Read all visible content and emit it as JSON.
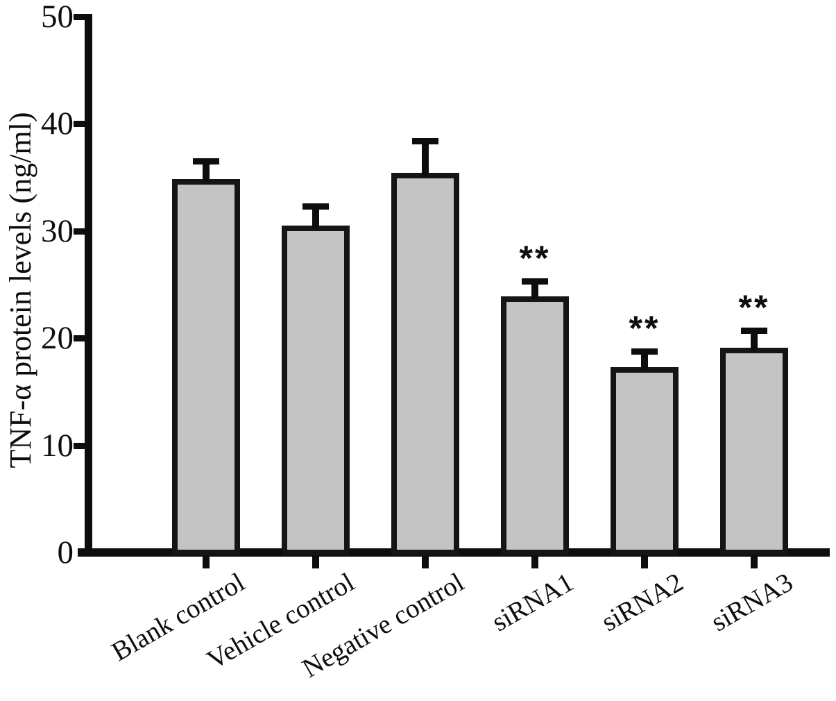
{
  "figure": {
    "background": "#ffffff",
    "axis_color": "#0d0d0d",
    "text_color": "#0d0d0d"
  },
  "chart_data": {
    "type": "bar",
    "title": "",
    "xlabel": "",
    "ylabel": "TNF-α protein levels (ng/ml)",
    "ylim": [
      0,
      50
    ],
    "yticks": [
      0,
      10,
      20,
      30,
      40,
      50
    ],
    "grid": false,
    "legend": "none",
    "categories": [
      "Blank control",
      "Vehicle control",
      "Negative control",
      "siRNA1",
      "siRNA2",
      "siRNA3"
    ],
    "series": [
      {
        "name": "TNF-α protein levels",
        "values": [
          34.8,
          30.5,
          35.4,
          23.9,
          17.3,
          19.1
        ],
        "errors_plus": [
          1.7,
          1.8,
          3.0,
          1.4,
          1.5,
          1.6
        ]
      }
    ],
    "significance": [
      "",
      "",
      "",
      "**",
      "**",
      "**"
    ],
    "bar_fill": "#c4c4c4",
    "bar_border": "#151515",
    "error_bar_style": "caps-up-only"
  }
}
